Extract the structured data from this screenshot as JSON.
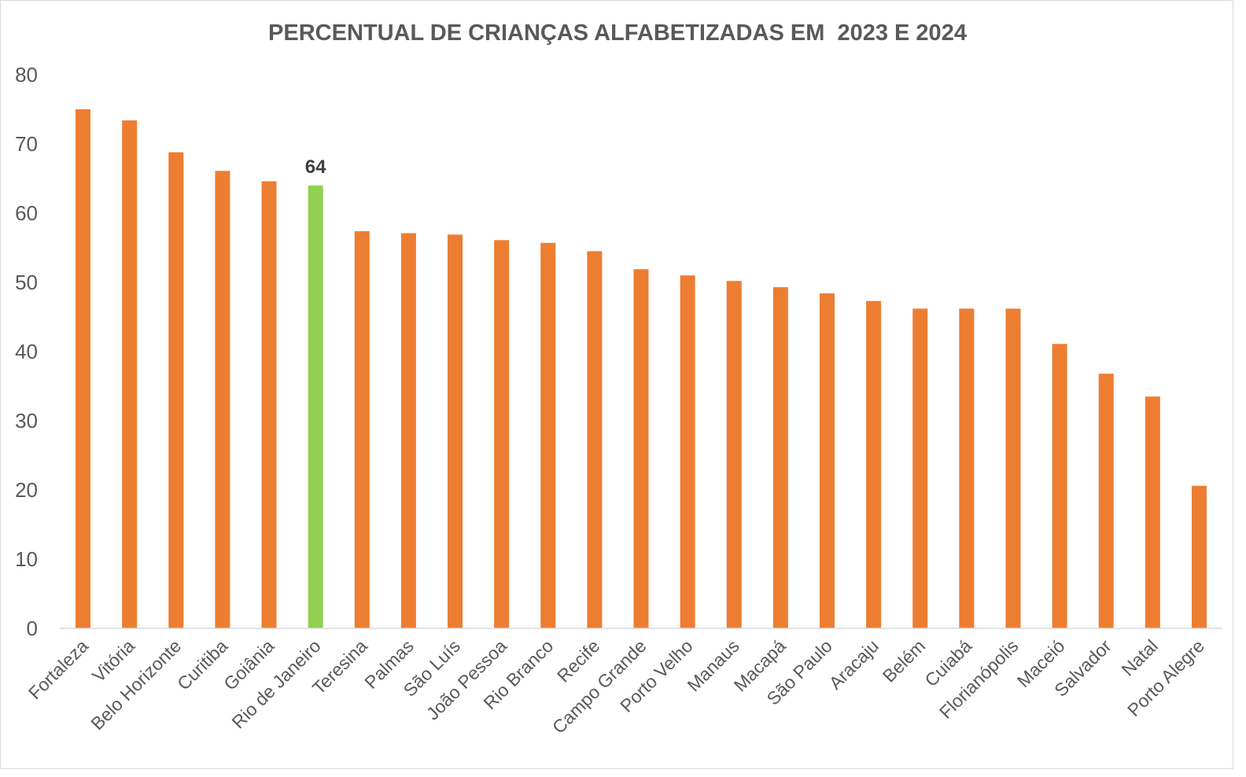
{
  "chart_data": {
    "type": "bar",
    "title": "PERCENTUAL DE CRIANÇAS ALFABETIZADAS EM  2023 E 2024",
    "xlabel": "",
    "ylabel": "",
    "ylim": [
      0,
      80
    ],
    "yticks": [
      0,
      10,
      20,
      30,
      40,
      50,
      60,
      70,
      80
    ],
    "grid": false,
    "legend": "none",
    "colors": {
      "default": "#ED7D31",
      "highlight": "#92D050"
    },
    "highlight_index": 5,
    "categories": [
      "Fortaleza",
      "Vitória",
      "Belo Horizonte",
      "Curitiba",
      "Goiânia",
      "Rio de Janeiro",
      "Teresina",
      "Palmas",
      "São Luís",
      "João Pessoa",
      "Rio Branco",
      "Recife",
      "Campo Grande",
      "Porto Velho",
      "Manaus",
      "Macapá",
      "São Paulo",
      "Aracaju",
      "Belém",
      "Cuiabá",
      "Florianópolis",
      "Maceió",
      "Salvador",
      "Natal",
      "Porto Alegre"
    ],
    "values": [
      75,
      73.4,
      68.8,
      66.1,
      64.6,
      64,
      57.4,
      57.1,
      56.9,
      56.1,
      55.7,
      54.5,
      51.9,
      51,
      50.2,
      49.3,
      48.4,
      47.3,
      46.2,
      46.2,
      46.2,
      41.1,
      36.8,
      33.5,
      20.6
    ],
    "data_labels": [
      {
        "index": 5,
        "text": "64"
      }
    ]
  }
}
